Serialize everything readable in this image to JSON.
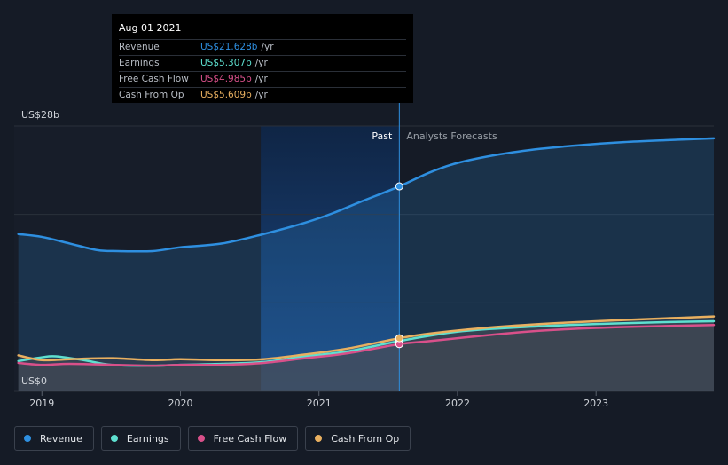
{
  "tooltip": {
    "date": "Aug 01 2021",
    "rows": [
      {
        "name": "Revenue",
        "value": "US$21.628b",
        "unit": "/yr",
        "color": "#2e8fe0"
      },
      {
        "name": "Earnings",
        "value": "US$5.307b",
        "unit": "/yr",
        "color": "#5ee0d0"
      },
      {
        "name": "Free Cash Flow",
        "value": "US$4.985b",
        "unit": "/yr",
        "color": "#d9508a"
      },
      {
        "name": "Cash From Op",
        "value": "US$5.609b",
        "unit": "/yr",
        "color": "#e9b060"
      }
    ]
  },
  "legend": [
    {
      "label": "Revenue",
      "color": "#2e8fe0"
    },
    {
      "label": "Earnings",
      "color": "#5ee0d0"
    },
    {
      "label": "Free Cash Flow",
      "color": "#d9508a"
    },
    {
      "label": "Cash From Op",
      "color": "#e9b060"
    }
  ],
  "chart_data": {
    "type": "area",
    "y_top_label": "US$28b",
    "y_bottom_label": "US$0",
    "ylim": [
      0,
      28
    ],
    "xlim": [
      2018.8,
      2023.85
    ],
    "x_ticks": [
      2019,
      2020,
      2021,
      2022,
      2023
    ],
    "x_tick_labels": [
      "2019",
      "2020",
      "2021",
      "2022",
      "2023"
    ],
    "past_label": "Past",
    "forecast_label": "Analysts Forecasts",
    "divider_x": 2021.58,
    "highlight_start_x": 2020.58,
    "series": [
      {
        "name": "Revenue",
        "color": "#2e8fe0",
        "x": [
          2018.83,
          2019.0,
          2019.2,
          2019.4,
          2019.55,
          2019.8,
          2020.0,
          2020.3,
          2020.6,
          2020.9,
          2021.1,
          2021.3,
          2021.58,
          2021.8,
          2022.0,
          2022.3,
          2022.6,
          2022.9,
          2023.2,
          2023.5,
          2023.85
        ],
        "y": [
          16.6,
          16.3,
          15.6,
          14.9,
          14.8,
          14.8,
          15.2,
          15.6,
          16.6,
          17.8,
          18.8,
          20.0,
          21.628,
          23.1,
          24.1,
          25.0,
          25.6,
          26.0,
          26.3,
          26.5,
          26.7
        ]
      },
      {
        "name": "Earnings",
        "color": "#5ee0d0",
        "x": [
          2018.83,
          2019.0,
          2019.1,
          2019.3,
          2019.5,
          2019.8,
          2020.0,
          2020.3,
          2020.6,
          2020.9,
          2021.2,
          2021.58,
          2022.0,
          2022.5,
          2023.0,
          2023.5,
          2023.85
        ],
        "y": [
          3.2,
          3.6,
          3.7,
          3.3,
          2.8,
          2.7,
          2.8,
          2.9,
          3.1,
          3.7,
          4.2,
          5.307,
          6.3,
          6.8,
          7.1,
          7.3,
          7.4
        ]
      },
      {
        "name": "Free Cash Flow",
        "color": "#d9508a",
        "x": [
          2018.83,
          2019.0,
          2019.2,
          2019.5,
          2019.8,
          2020.0,
          2020.3,
          2020.6,
          2020.9,
          2021.2,
          2021.58,
          2021.8,
          2022.2,
          2022.6,
          2023.0,
          2023.5,
          2023.85
        ],
        "y": [
          3.0,
          2.8,
          2.9,
          2.8,
          2.7,
          2.8,
          2.8,
          3.0,
          3.5,
          4.0,
          4.985,
          5.3,
          5.9,
          6.4,
          6.7,
          6.9,
          7.0
        ]
      },
      {
        "name": "Cash From Op",
        "color": "#e9b060",
        "x": [
          2018.83,
          2019.0,
          2019.2,
          2019.5,
          2019.8,
          2020.0,
          2020.3,
          2020.6,
          2020.9,
          2021.2,
          2021.58,
          2021.8,
          2022.2,
          2022.6,
          2023.0,
          2023.5,
          2023.85
        ],
        "y": [
          3.8,
          3.3,
          3.4,
          3.5,
          3.3,
          3.4,
          3.3,
          3.4,
          3.9,
          4.5,
          5.609,
          6.1,
          6.7,
          7.1,
          7.4,
          7.7,
          7.9
        ]
      }
    ]
  }
}
